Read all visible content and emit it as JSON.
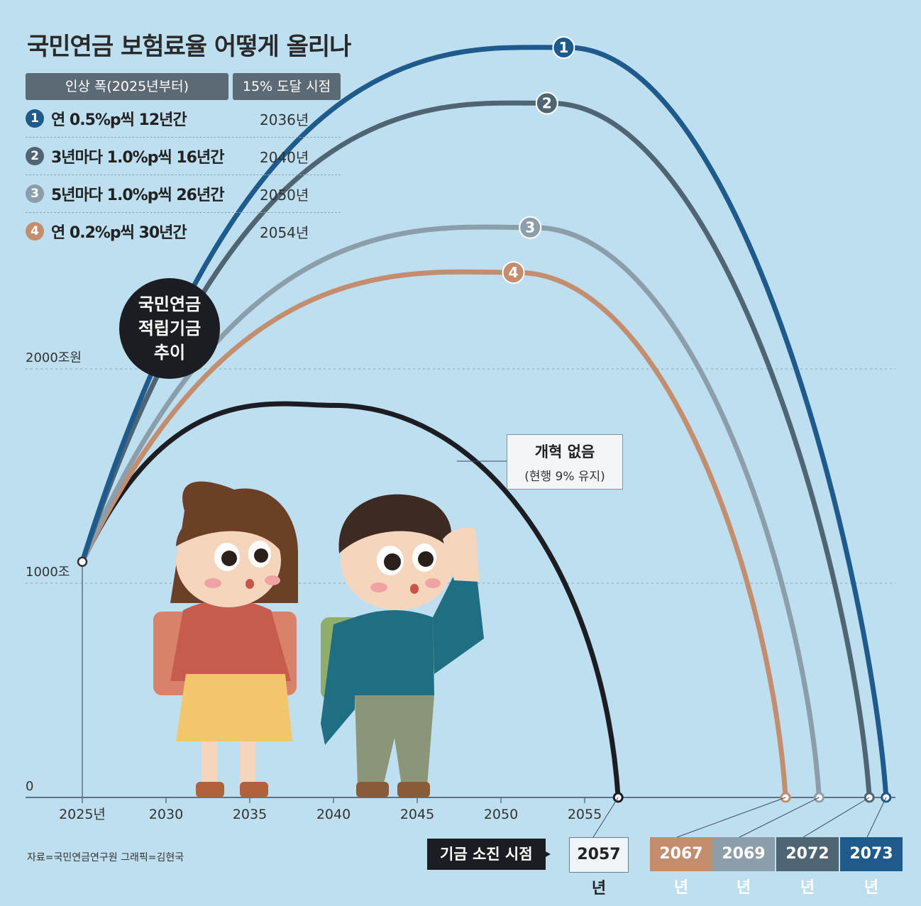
{
  "title": "국민연금 보험료율 어떻게 올리나",
  "legend": {
    "headers": [
      "인상 폭(2025년부터)",
      "15% 도달 시점"
    ],
    "rows": [
      {
        "num": "1",
        "label": "연 0.5%p씩 12년간",
        "year": "2036년",
        "color": "#1e5b8c"
      },
      {
        "num": "2",
        "label": "3년마다 1.0%p씩 16년간",
        "year": "2040년",
        "color": "#4f6574"
      },
      {
        "num": "3",
        "label": "5년마다 1.0%p씩 26년간",
        "year": "2050년",
        "color": "#8b9ea9"
      },
      {
        "num": "4",
        "label": "연 0.2%p씩 30년간",
        "year": "2054년",
        "color": "#c48d6d"
      }
    ]
  },
  "badge": [
    "국민연금",
    "적립기금",
    "추이"
  ],
  "callout": {
    "line1": "개혁 없음",
    "line2": "(현행 9% 유지)"
  },
  "exhaustion": {
    "label": "기금 소진 시점",
    "baseline_year": "2057년"
  },
  "end_years": [
    {
      "label": "2067년",
      "color": "#c48d6d"
    },
    {
      "label": "2069년",
      "color": "#8b9ea9"
    },
    {
      "label": "2072년",
      "color": "#4f6574"
    },
    {
      "label": "2073년",
      "color": "#1e5b8c"
    }
  ],
  "source": "자료=국민연금연구원   그래픽=김현국",
  "chart_data": {
    "type": "line",
    "ylabel_ticks": [
      "0",
      "1000조",
      "2000조원"
    ],
    "y_ticks": [
      0,
      1000,
      2000
    ],
    "x_ticks": [
      "2025년",
      "2030",
      "2035",
      "2040",
      "2045",
      "2050",
      "2055"
    ],
    "x_tick_values": [
      2025,
      2030,
      2035,
      2040,
      2045,
      2050,
      2055
    ],
    "xlim": [
      2022,
      2080
    ],
    "ylim": [
      0,
      3500
    ],
    "series": [
      {
        "name": "1",
        "color": "#1e5b8c",
        "peak_x": 2054,
        "peak_y": 3500,
        "end_x": 2073
      },
      {
        "name": "2",
        "color": "#4f6574",
        "peak_x": 2053,
        "peak_y": 3240,
        "end_x": 2072
      },
      {
        "name": "3",
        "color": "#8b9ea9",
        "peak_x": 2052,
        "peak_y": 2660,
        "end_x": 2069
      },
      {
        "name": "4",
        "color": "#c48d6d",
        "peak_x": 2051,
        "peak_y": 2450,
        "end_x": 2067
      },
      {
        "name": "개혁 없음",
        "color": "#1b1d22",
        "peak_x": 2040,
        "peak_y": 1830,
        "end_x": 2057
      }
    ],
    "start": {
      "x": 2025,
      "y": 1100
    }
  }
}
